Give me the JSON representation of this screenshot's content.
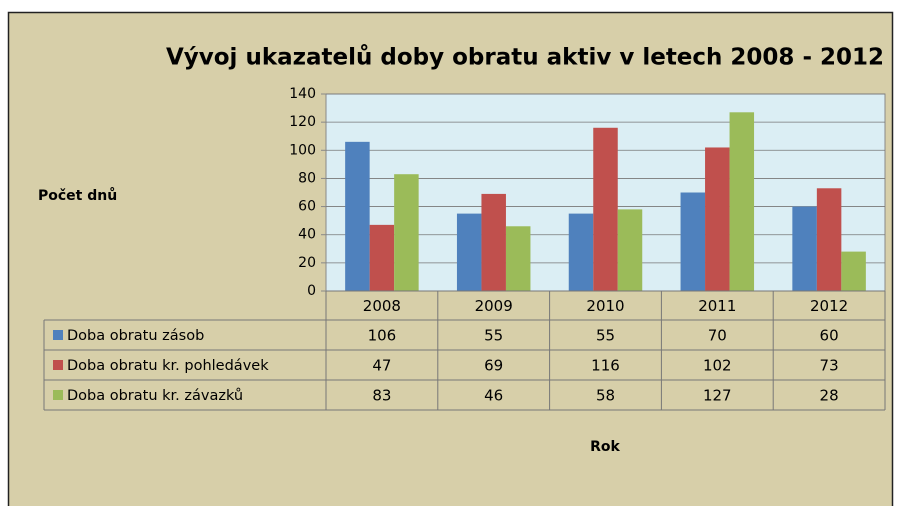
{
  "chart_data": {
    "type": "bar",
    "title": "Vývoj ukazatelů doby obratu aktiv  v letech 2008 - 2012",
    "y_label": "Počet dnů",
    "x_label": "Rok",
    "categories": [
      "2008",
      "2009",
      "2010",
      "2011",
      "2012"
    ],
    "series": [
      {
        "name": "Doba obratu zásob",
        "color": "#4f81bd",
        "values": [
          106,
          55,
          55,
          70,
          60
        ]
      },
      {
        "name": "Doba obratu kr. pohledávek",
        "color": "#c0504d",
        "values": [
          47,
          69,
          116,
          102,
          73
        ]
      },
      {
        "name": "Doba obratu kr. závazků",
        "color": "#9bbb59",
        "values": [
          83,
          46,
          58,
          127,
          28
        ]
      }
    ],
    "ylim": [
      0,
      140
    ],
    "yticks": [
      0,
      20,
      40,
      60,
      80,
      100,
      120,
      140
    ],
    "grid": true,
    "data_table": true
  }
}
